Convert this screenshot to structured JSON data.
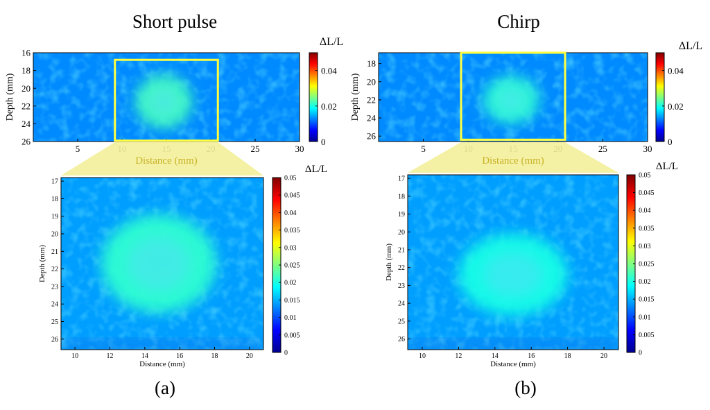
{
  "colors": {
    "background": "#1f7fe6",
    "blob": "#3fd0f0",
    "roi_box": "#ffff40",
    "roi_fill": "#f3ef9a",
    "distance_label": "#c9b227"
  },
  "chart_data": [
    {
      "id": "a",
      "type": "heatmap",
      "variant": "overview",
      "title": "Short pulse",
      "panel_label": "(a)",
      "xlabel": "Distance (mm)",
      "ylabel": "Depth (mm)",
      "colorbar_label": "ΔL/L",
      "xlim": [
        0,
        30
      ],
      "ylim": [
        26,
        16
      ],
      "xticks": [
        5,
        10,
        15,
        20,
        25,
        30
      ],
      "yticks": [
        16,
        18,
        20,
        22,
        24,
        26
      ],
      "clim": [
        0,
        0.05
      ],
      "cticks": [
        0,
        0.02,
        0.04
      ],
      "cticklabels": [
        "0",
        "0.02",
        "0.04"
      ],
      "background_value": 0.013,
      "lesion_value": 0.022,
      "lesion_center": [
        14.7,
        21.5
      ],
      "lesion_radii": [
        3.2,
        3.0
      ],
      "roi": {
        "x": [
          9.2,
          20.8
        ],
        "y": [
          16.8,
          25.9
        ]
      }
    },
    {
      "id": "a_zoom",
      "type": "heatmap",
      "variant": "zoom",
      "xlabel": "Distance (mm)",
      "ylabel": "Depth (mm)",
      "colorbar_label": "ΔL/L",
      "xlim": [
        9.2,
        20.8
      ],
      "ylim": [
        26.6,
        16.8
      ],
      "xticks": [
        10,
        12,
        14,
        16,
        18,
        20
      ],
      "yticks": [
        17,
        18,
        19,
        20,
        21,
        22,
        23,
        24,
        25,
        26
      ],
      "clim": [
        0,
        0.05
      ],
      "cticks": [
        0,
        0.005,
        0.01,
        0.015,
        0.02,
        0.025,
        0.03,
        0.035,
        0.04,
        0.045,
        0.05
      ],
      "cticklabels": [
        "0",
        "0.005",
        "0.01",
        "0.015",
        "0.02",
        "0.025",
        "0.03",
        "0.035",
        "0.04",
        "0.045",
        "0.05"
      ],
      "background_value": 0.014,
      "lesion_value": 0.021,
      "lesion_center": [
        14.8,
        21.7
      ],
      "lesion_radii": [
        3.3,
        2.8
      ]
    },
    {
      "id": "b",
      "type": "heatmap",
      "variant": "overview",
      "title": "Chirp",
      "panel_label": "(b)",
      "xlabel": "Distance (mm)",
      "ylabel": "Depth (mm)",
      "colorbar_label": "ΔL/L",
      "xlim": [
        0,
        30
      ],
      "ylim": [
        26.6,
        16.8
      ],
      "xticks": [
        5,
        10,
        15,
        20,
        25,
        30
      ],
      "yticks": [
        18,
        20,
        22,
        24,
        26
      ],
      "clim": [
        0,
        0.05
      ],
      "cticks": [
        0,
        0.02,
        0.04
      ],
      "cticklabels": [
        "0",
        "0.02",
        "0.04"
      ],
      "background_value": 0.013,
      "lesion_value": 0.021,
      "lesion_center": [
        14.8,
        22.0
      ],
      "lesion_radii": [
        3.1,
        2.6
      ],
      "roi": {
        "x": [
          9.2,
          20.8
        ],
        "y": [
          16.8,
          26.4
        ]
      }
    },
    {
      "id": "b_zoom",
      "type": "heatmap",
      "variant": "zoom",
      "xlabel": "Distance (mm)",
      "ylabel": "Depth (mm)",
      "colorbar_label": "ΔL/L",
      "xlim": [
        9.2,
        20.8
      ],
      "ylim": [
        26.6,
        16.8
      ],
      "xticks": [
        10,
        12,
        14,
        16,
        18,
        20
      ],
      "yticks": [
        17,
        18,
        19,
        20,
        21,
        22,
        23,
        24,
        25,
        26
      ],
      "clim": [
        0,
        0.05
      ],
      "cticks": [
        0,
        0.005,
        0.01,
        0.015,
        0.02,
        0.025,
        0.03,
        0.035,
        0.04,
        0.045,
        0.05
      ],
      "cticklabels": [
        "0",
        "0.005",
        "0.01",
        "0.015",
        "0.02",
        "0.025",
        "0.03",
        "0.035",
        "0.04",
        "0.045",
        "0.05"
      ],
      "background_value": 0.014,
      "lesion_value": 0.02,
      "lesion_center": [
        15.0,
        22.4
      ],
      "lesion_radii": [
        3.0,
        2.3
      ]
    }
  ]
}
